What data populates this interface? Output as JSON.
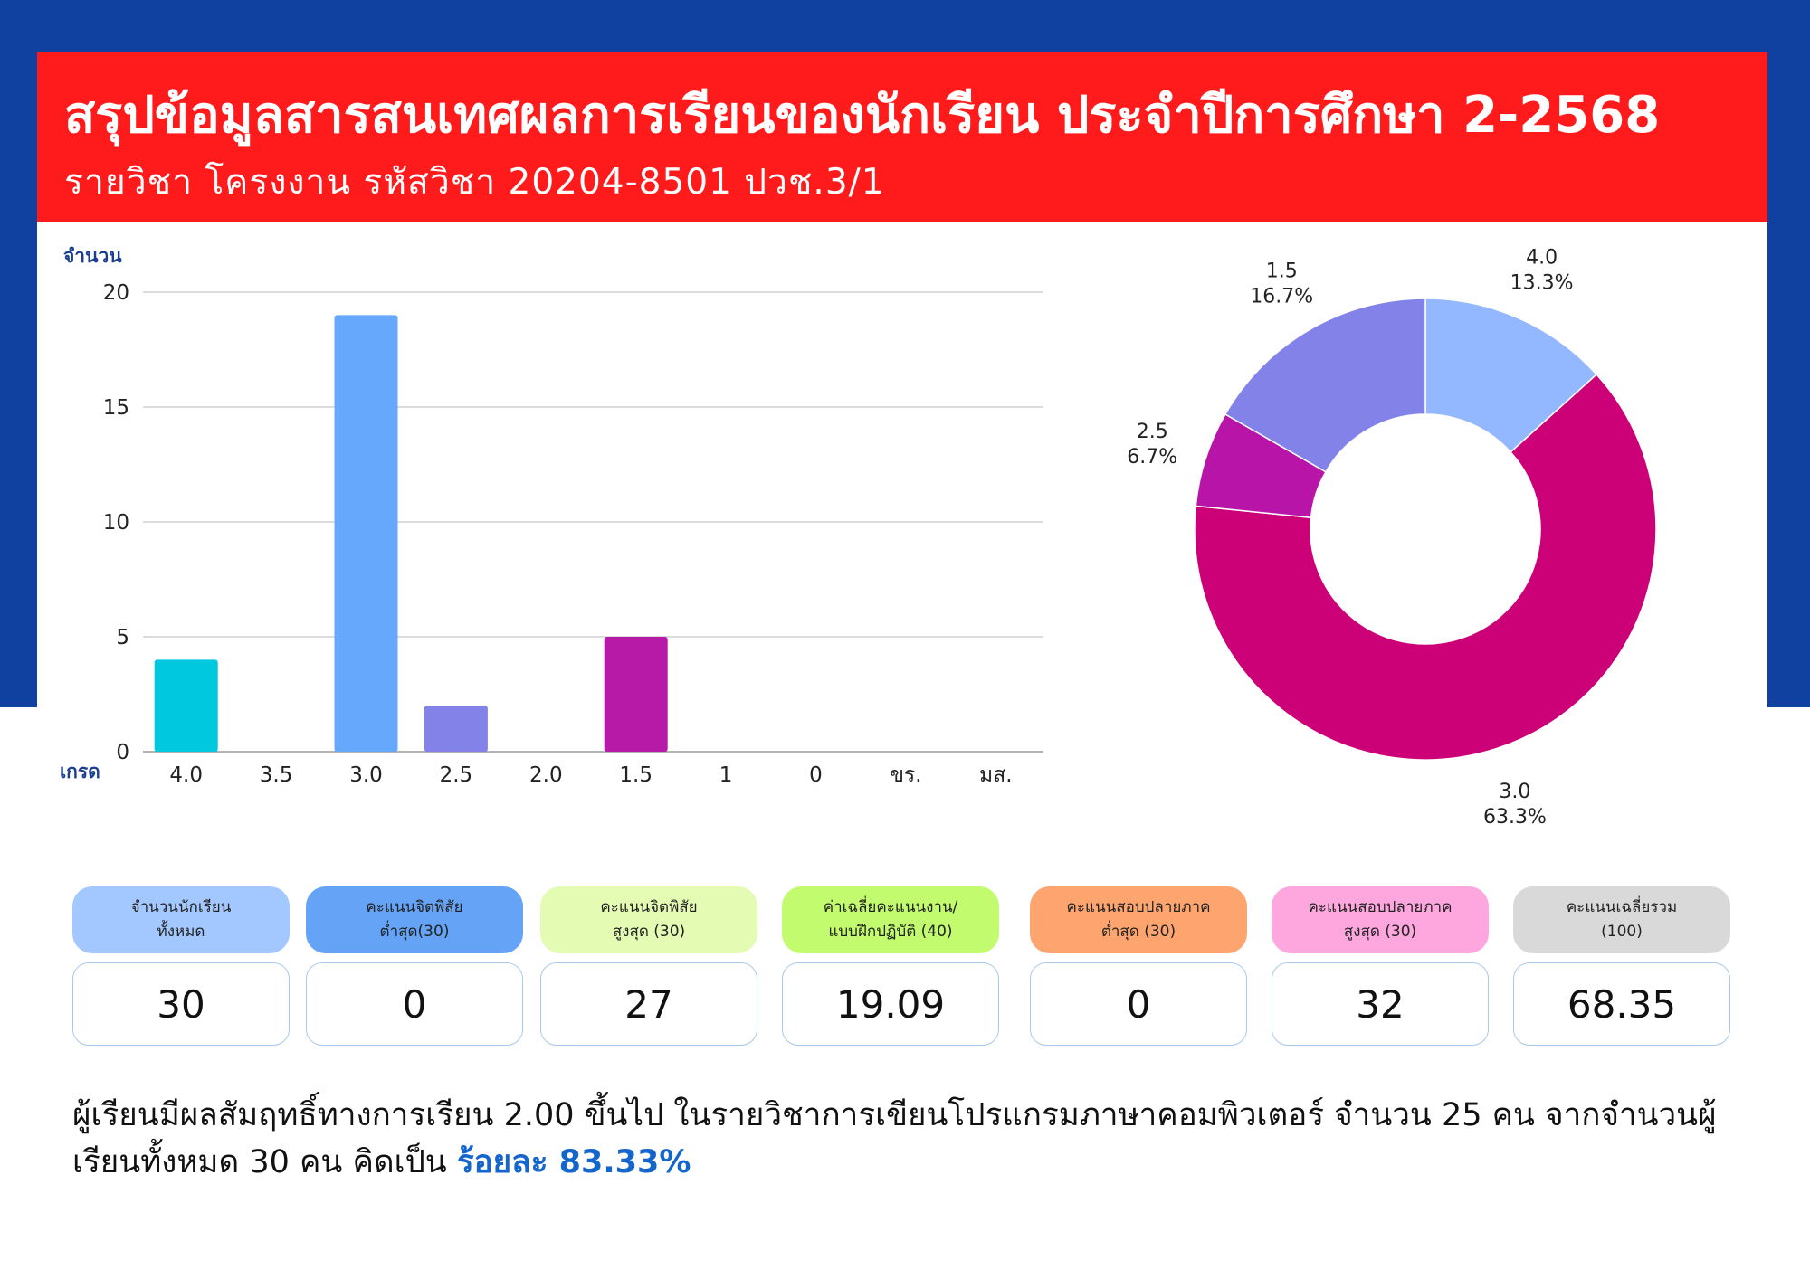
{
  "header": {
    "title": "สรุปข้อมูลสารสนเทศผลการเรียนของนักเรียน ประจำปีการศึกษา 2-2568",
    "subtitle": "รายวิชา  โครงงาน  รหัสวิชา  20204-8501  ปวช.3/1"
  },
  "chart_data": [
    {
      "type": "bar",
      "ylabel": "จำนวน",
      "xlabel": "เกรด",
      "categories": [
        "4.0",
        "3.5",
        "3.0",
        "2.5",
        "2.0",
        "1.5",
        "1",
        "0",
        "ขร.",
        "มส."
      ],
      "values": [
        4,
        0,
        19,
        2,
        0,
        5,
        0,
        0,
        0,
        0
      ],
      "ylim": [
        0,
        20
      ],
      "yticks": [
        0,
        5,
        10,
        15,
        20
      ],
      "grid": true,
      "colors": [
        "#00c8de",
        "#00c8de",
        "#66a8fb",
        "#8282e8",
        "#8282e8",
        "#b81aa8",
        "#b81aa8",
        "#b81aa8",
        "#b81aa8",
        "#b81aa8"
      ]
    },
    {
      "type": "pie",
      "donut": true,
      "slices": [
        {
          "label": "4.0",
          "value": 13.3,
          "pct": "13.3%",
          "color": "#93b8ff"
        },
        {
          "label": "3.0",
          "value": 63.3,
          "pct": "63.3%",
          "color": "#cc0077"
        },
        {
          "label": "2.5",
          "value": 6.7,
          "pct": "6.7%",
          "color": "#b815a8"
        },
        {
          "label": "1.5",
          "value": 16.7,
          "pct": "16.7%",
          "color": "#8282e8"
        }
      ]
    }
  ],
  "stats": [
    {
      "label": "จำนวนนักเรียน\nทั้งหมด",
      "value": "30",
      "color": "#a3c8ff"
    },
    {
      "label": "คะแนนจิตพิสัย\nต่ำสุด(30)",
      "value": "0",
      "color": "#64a3f5"
    },
    {
      "label": "คะแนนจิตพิสัย\nสูงสุด (30)",
      "value": "27",
      "color": "#e4fbb3"
    },
    {
      "label": "ค่าเฉลี่ยคะแนนงาน/\nแบบฝึกปฏิบัติ (40)",
      "value": "19.09",
      "color": "#c3fb6e"
    },
    {
      "label": "คะแนนสอบปลายภาค\nต่ำสุด (30)",
      "value": "0",
      "color": "#fea56f"
    },
    {
      "label": "คะแนนสอบปลายภาค\nสูงสุด (30)",
      "value": "32",
      "color": "#fea6de"
    },
    {
      "label": "คะแนนเฉลี่ยรวม\n(100)",
      "value": "68.35",
      "color": "#d9d9d9"
    }
  ],
  "summary": {
    "text": "ผู้เรียนมีผลสัมฤทธิ์ทางการเรียน 2.00 ขึ้นไป ในรายวิชาการเขียนโปรแกรมภาษาคอมพิวเตอร์ จำนวน 25 คน จากจำนวนผู้เรียนทั้งหมด 30 คน คิดเป็น ",
    "highlight": "ร้อยละ 83.33%"
  }
}
